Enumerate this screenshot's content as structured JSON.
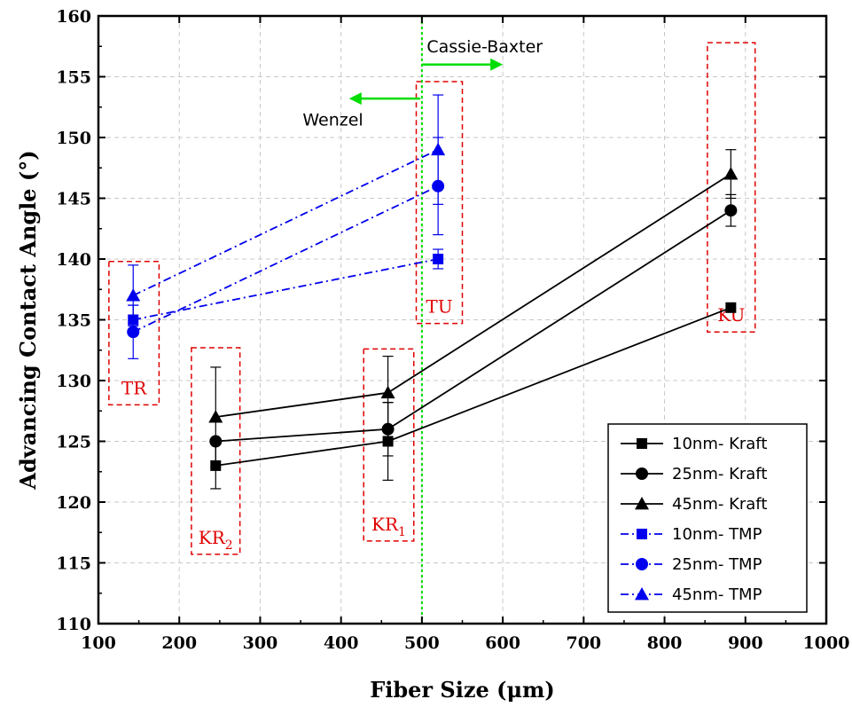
{
  "chart_data": {
    "type": "line",
    "xlabel": "Fiber Size (μm)",
    "ylabel": "Advancing Contact Angle (°)",
    "xlim": [
      100,
      1000
    ],
    "ylim": [
      110,
      160
    ],
    "xticks": [
      100,
      200,
      300,
      400,
      500,
      600,
      700,
      800,
      900,
      1000
    ],
    "yticks": [
      110,
      115,
      120,
      125,
      130,
      135,
      140,
      145,
      150,
      155,
      160
    ],
    "grid": true,
    "legend_position": "bottom-right",
    "series": [
      {
        "name": "10nm- Kraft",
        "color": "#000000",
        "marker": "square",
        "dash": "solid",
        "x": [
          245,
          458,
          882
        ],
        "y": [
          123,
          125,
          136
        ],
        "err": [
          1.9,
          3.2,
          0.0
        ]
      },
      {
        "name": "25nm- Kraft",
        "color": "#000000",
        "marker": "circle",
        "dash": "solid",
        "x": [
          245,
          458,
          882
        ],
        "y": [
          125,
          126,
          144
        ],
        "err": [
          0.0,
          2.2,
          1.3
        ]
      },
      {
        "name": "45nm- Kraft",
        "color": "#000000",
        "marker": "triangle",
        "dash": "solid",
        "x": [
          245,
          458,
          882
        ],
        "y": [
          127,
          129,
          147
        ],
        "err": [
          4.1,
          3.0,
          2.0
        ]
      },
      {
        "name": "10nm- TMP",
        "color": "#0000ee",
        "marker": "square",
        "dash": "dashdot",
        "x": [
          143,
          520
        ],
        "y": [
          135,
          140
        ],
        "err": [
          1.2,
          0.8
        ]
      },
      {
        "name": "25nm- TMP",
        "color": "#0000ee",
        "marker": "circle",
        "dash": "dashdot",
        "x": [
          143,
          520
        ],
        "y": [
          134,
          146
        ],
        "err": [
          2.2,
          4.0
        ]
      },
      {
        "name": "45nm- TMP",
        "color": "#0000ee",
        "marker": "triangle",
        "dash": "dashdot",
        "x": [
          143,
          520
        ],
        "y": [
          137,
          149
        ],
        "err": [
          2.5,
          4.5
        ]
      }
    ],
    "regions": [
      {
        "label": "TR",
        "sub": "",
        "x": [
          113,
          175
        ],
        "y": [
          128,
          139.8
        ]
      },
      {
        "label": "KR",
        "sub": "2",
        "x": [
          215,
          275
        ],
        "y": [
          115.7,
          132.7
        ]
      },
      {
        "label": "KR",
        "sub": "1",
        "x": [
          428,
          490
        ],
        "y": [
          116.8,
          132.6
        ]
      },
      {
        "label": "TU",
        "sub": "",
        "x": [
          493,
          550
        ],
        "y": [
          134.7,
          154.6
        ]
      },
      {
        "label": "KU",
        "sub": "",
        "x": [
          853,
          912
        ],
        "y": [
          134,
          157.8
        ]
      }
    ],
    "threshold": {
      "x": 500,
      "color": "#00dd00"
    },
    "annotations": [
      {
        "text": "Cassie-Baxter",
        "x": 506,
        "y": 157,
        "anchor": "start"
      },
      {
        "text": "Wenzel",
        "x": 390,
        "y": 151,
        "anchor": "middle"
      }
    ],
    "arrows": [
      {
        "from": [
          500,
          156
        ],
        "to": [
          600,
          156
        ],
        "color": "#00dd00"
      },
      {
        "from": [
          498,
          153.2
        ],
        "to": [
          410,
          153.2
        ],
        "color": "#00dd00"
      }
    ]
  }
}
